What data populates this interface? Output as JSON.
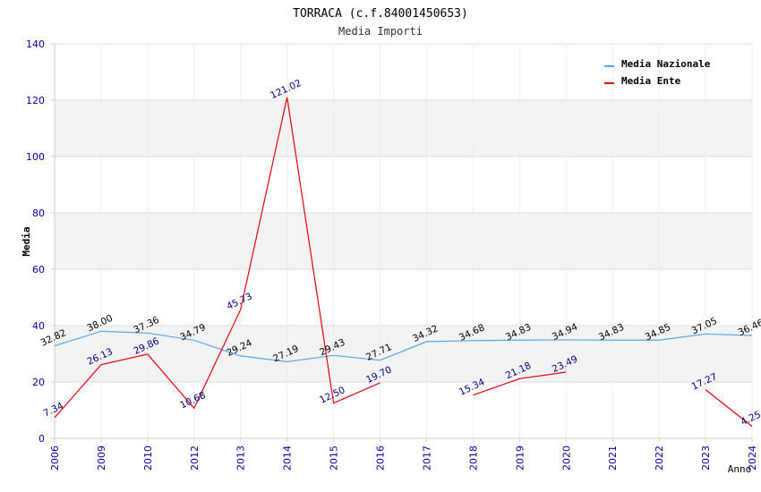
{
  "chart_data": {
    "type": "line",
    "title": "TORRACA (c.f.84001450653)",
    "subtitle": "Media Importi",
    "xlabel": "Anno",
    "ylabel": "Media",
    "ylim": [
      0,
      140
    ],
    "yticks": [
      0,
      20,
      40,
      60,
      80,
      100,
      120,
      140
    ],
    "grid": true,
    "legend_position": "top-right",
    "categories": [
      "2006",
      "2009",
      "2010",
      "2012",
      "2013",
      "2014",
      "2015",
      "2016",
      "2017",
      "2018",
      "2019",
      "2020",
      "2021",
      "2022",
      "2023",
      "2024"
    ],
    "series": [
      {
        "name": "Media Nazionale",
        "color": "#5aa7e6",
        "label_color": "#000000",
        "values": [
          32.82,
          38.0,
          37.36,
          34.79,
          29.24,
          27.19,
          29.43,
          27.71,
          34.32,
          34.68,
          34.83,
          34.94,
          34.83,
          34.85,
          37.05,
          36.46
        ],
        "labels": [
          "32.82",
          "38.00",
          "37.36",
          "34.79",
          "29.24",
          "27.19",
          "29.43",
          "27.71",
          "34.32",
          "34.68",
          "34.83",
          "34.94",
          "34.83",
          "34.85",
          "37.05",
          "36.46"
        ]
      },
      {
        "name": "Media Ente",
        "color": "#e8000b",
        "label_color": "#000080",
        "values": [
          7.34,
          26.13,
          29.86,
          10.68,
          45.73,
          121.02,
          12.5,
          19.7,
          null,
          15.34,
          21.18,
          23.49,
          null,
          null,
          17.27,
          4.25
        ],
        "labels": [
          "7.34",
          "26.13",
          "29.86",
          "10.68",
          "45.73",
          "121.02",
          "12.50",
          "19.70",
          "",
          "15.34",
          "21.18",
          "23.49",
          "",
          "",
          "17.27",
          "4.25"
        ]
      }
    ]
  }
}
